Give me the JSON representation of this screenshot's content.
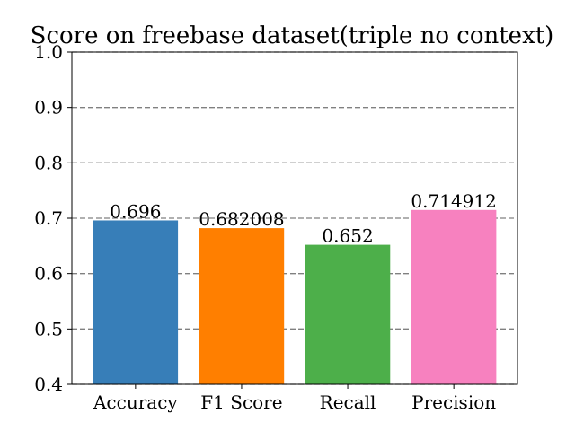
{
  "chart_data": {
    "type": "bar",
    "title": "Score on freebase dataset(triple no context)",
    "xlabel": "",
    "ylabel": "",
    "categories": [
      "Accuracy",
      "F1 Score",
      "Recall",
      "Precision"
    ],
    "values": [
      0.696,
      0.682008,
      0.652,
      0.714912
    ],
    "data_labels": [
      "0.696",
      "0.682008",
      "0.652",
      "0.714912"
    ],
    "colors": [
      "#377eb8",
      "#ff7f00",
      "#4daf4a",
      "#f781bf"
    ],
    "ylim": [
      0.4,
      1.0
    ],
    "yticks": [
      0.4,
      0.5,
      0.6,
      0.7,
      0.8,
      0.9,
      1.0
    ],
    "ytick_labels": [
      "0.4",
      "0.5",
      "0.6",
      "0.7",
      "0.8",
      "0.9",
      "1.0"
    ],
    "grid": "y-dashed",
    "grid_color": "#808080",
    "legend": "none"
  }
}
